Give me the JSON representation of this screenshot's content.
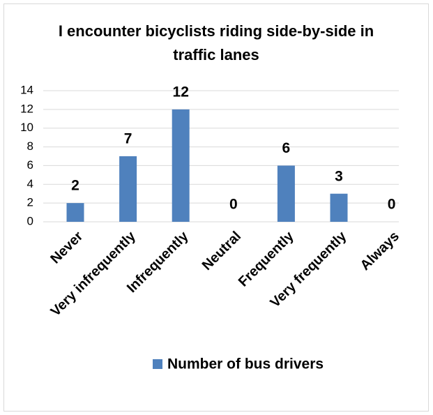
{
  "chart_data": {
    "type": "bar",
    "title": "I encounter bicyclists riding side-by-side in traffic lanes",
    "categories": [
      "Never",
      "Very infrequently",
      "Infrequently",
      "Neutral",
      "Frequently",
      "Very frequently",
      "Always"
    ],
    "series": [
      {
        "name": "Number of bus drivers",
        "color": "#4f81bd",
        "values": [
          2,
          7,
          12,
          0,
          6,
          3,
          0
        ]
      }
    ],
    "ylim": [
      0,
      14
    ],
    "yticks": [
      0,
      2,
      4,
      6,
      8,
      10,
      12,
      14
    ],
    "grid": true,
    "legend": "bottom"
  }
}
